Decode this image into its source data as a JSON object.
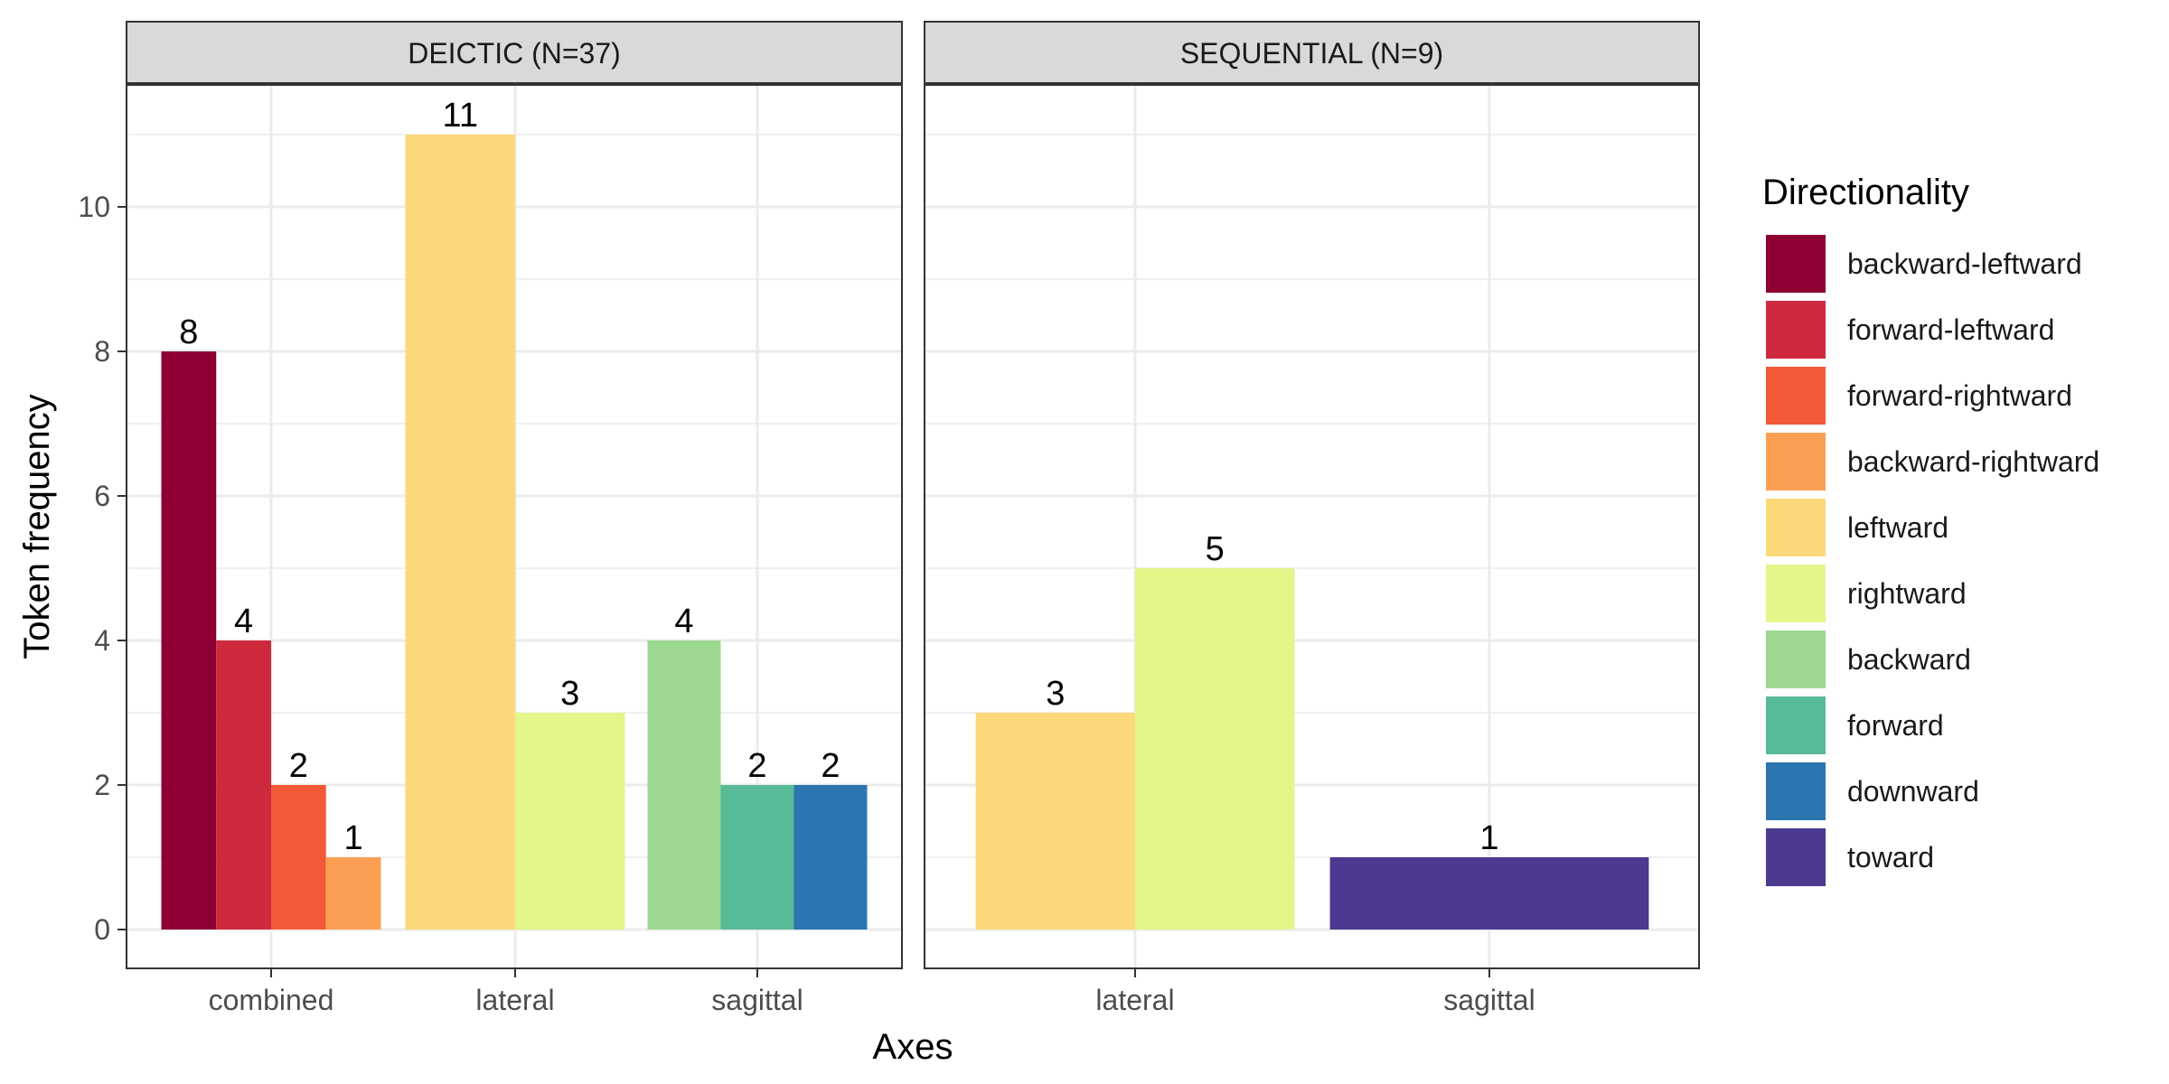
{
  "chart_data": {
    "type": "bar",
    "xlabel": "Axes",
    "ylabel": "Token frequency",
    "ylim": [
      0,
      11.5
    ],
    "y_ticks": [
      0,
      2,
      4,
      6,
      8,
      10
    ],
    "grid": true,
    "legend": {
      "title": "Directionality",
      "placement": "right",
      "entries": [
        {
          "name": "backward-leftward",
          "color": "#8E0034"
        },
        {
          "name": "forward-leftward",
          "color": "#CD2A3E"
        },
        {
          "name": "forward-rightward",
          "color": "#F25A37"
        },
        {
          "name": "backward-rightward",
          "color": "#FBA052"
        },
        {
          "name": "leftward",
          "color": "#FBD97A"
        },
        {
          "name": "rightward",
          "color": "#E2F68A"
        },
        {
          "name": "backward",
          "color": "#9DD891"
        },
        {
          "name": "forward",
          "color": "#57BB97"
        },
        {
          "name": "downward",
          "color": "#2B75B0"
        },
        {
          "name": "toward",
          "color": "#4B3A8F"
        }
      ]
    },
    "panels": [
      {
        "title": "DEICTIC (N=37)",
        "categories": [
          {
            "name": "combined",
            "bars": [
              {
                "series": "backward-leftward",
                "value": 8
              },
              {
                "series": "forward-leftward",
                "value": 4
              },
              {
                "series": "forward-rightward",
                "value": 2
              },
              {
                "series": "backward-rightward",
                "value": 1
              }
            ]
          },
          {
            "name": "lateral",
            "bars": [
              {
                "series": "leftward",
                "value": 11
              },
              {
                "series": "rightward",
                "value": 3
              }
            ]
          },
          {
            "name": "sagittal",
            "bars": [
              {
                "series": "backward",
                "value": 4
              },
              {
                "series": "forward",
                "value": 2
              },
              {
                "series": "downward",
                "value": 2
              }
            ]
          }
        ]
      },
      {
        "title": "SEQUENTIAL (N=9)",
        "categories": [
          {
            "name": "lateral",
            "bars": [
              {
                "series": "leftward",
                "value": 3
              },
              {
                "series": "rightward",
                "value": 5
              }
            ]
          },
          {
            "name": "sagittal",
            "bars": [
              {
                "series": "toward",
                "value": 1
              }
            ]
          }
        ]
      }
    ]
  }
}
